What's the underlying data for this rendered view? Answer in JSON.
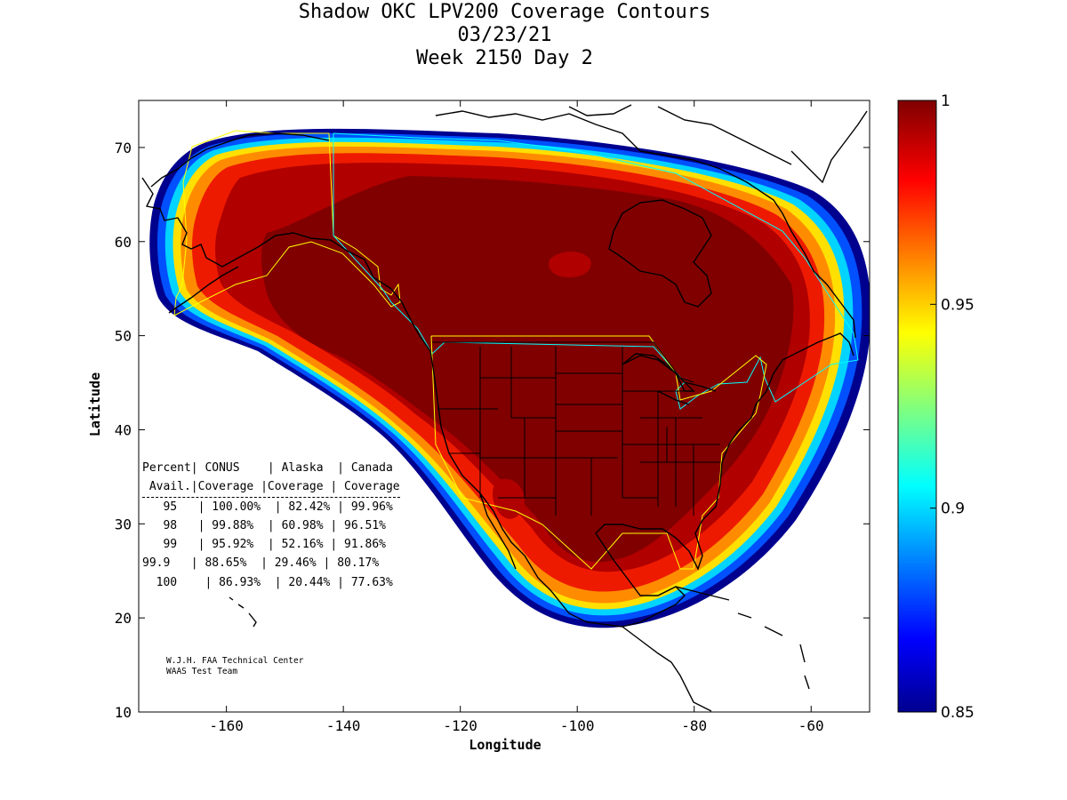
{
  "title": {
    "line1": "Shadow OKC LPV200 Coverage Contours",
    "line2": "03/23/21",
    "line3": "Week 2150 Day 2"
  },
  "axes": {
    "xlabel": "Longitude",
    "ylabel": "Latitude",
    "x_ticks": [
      "-160",
      "-140",
      "-120",
      "-100",
      "-80",
      "-60"
    ],
    "y_ticks": [
      "70",
      "60",
      "50",
      "40",
      "30",
      "20",
      "10"
    ],
    "xlim": [
      -175,
      -50
    ],
    "ylim": [
      10,
      75
    ]
  },
  "colorbar": {
    "ticks": [
      "1",
      "0.95",
      "0.9",
      "0.85"
    ],
    "range": [
      0.85,
      1.0
    ],
    "colormap": "jet"
  },
  "stats_table": {
    "header1": [
      "Percent",
      "CONUS",
      "Alaska",
      "Canada"
    ],
    "header2": [
      "Avail.",
      "Coverage",
      "Coverage",
      "Coverage"
    ],
    "rows": [
      [
        "95",
        "100.00%",
        "82.42%",
        "99.96%"
      ],
      [
        "98",
        "99.88%",
        "60.98%",
        "96.51%"
      ],
      [
        "99",
        "95.92%",
        "52.16%",
        "91.86%"
      ],
      [
        "99.9",
        "88.65%",
        "29.46%",
        "80.17%"
      ],
      [
        "100",
        "86.93%",
        "20.44%",
        "77.63%"
      ]
    ]
  },
  "credit": {
    "line1": "W.J.H. FAA Technical Center",
    "line2": "WAAS Test Team"
  },
  "colors": {
    "dark_red": "#7f0000",
    "red": "#cc0000",
    "bright_red": "#ff0000",
    "orange": "#ff8000",
    "yellow": "#ffff00",
    "cyan": "#00ffff",
    "blue": "#0000ff",
    "navy": "#00008f",
    "service_volume_yellow": "#ffff00",
    "service_volume_cyan": "#00ffff"
  },
  "chart_data": {
    "type": "heatmap",
    "title": "Shadow OKC LPV200 Coverage Contours",
    "xlabel": "Longitude",
    "ylabel": "Latitude",
    "xlim": [
      -175,
      -50
    ],
    "ylim": [
      10,
      75
    ],
    "value_range": [
      0.85,
      1.0
    ],
    "coverage_summary": [
      {
        "percent_avail": 95,
        "conus": 100.0,
        "alaska": 82.42,
        "canada": 99.96
      },
      {
        "percent_avail": 98,
        "conus": 99.88,
        "alaska": 60.98,
        "canada": 96.51
      },
      {
        "percent_avail": 99,
        "conus": 95.92,
        "alaska": 52.16,
        "canada": 91.86
      },
      {
        "percent_avail": 99.9,
        "conus": 88.65,
        "alaska": 29.46,
        "canada": 80.17
      },
      {
        "percent_avail": 100,
        "conus": 86.93,
        "alaska": 20.44,
        "canada": 77.63
      }
    ]
  }
}
